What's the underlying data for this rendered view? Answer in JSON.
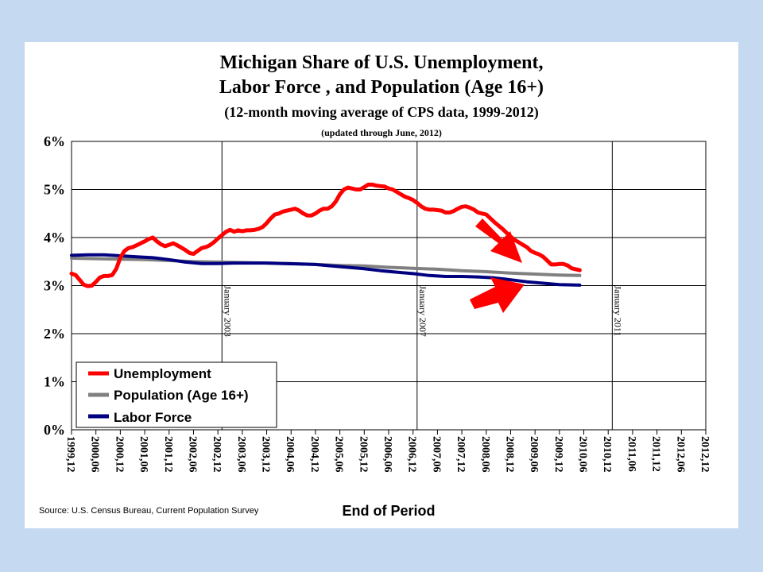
{
  "chart_data": {
    "type": "line",
    "title": "Michigan Share of U.S. Unemployment,",
    "title_line2": "Labor Force , and Population (Age 16+)",
    "subtitle": "(12-month moving average of CPS data, 1999-2012)",
    "subtitle2": "(updated through June, 2012)",
    "xlabel": "End of Period",
    "ylabel": "",
    "source": "Source: U.S. Census Bureau, Current Population Survey",
    "ylim": [
      0,
      6
    ],
    "y_ticks": [
      "0%",
      "1%",
      "2%",
      "3%",
      "4%",
      "5%",
      "6%"
    ],
    "x_ticks": [
      "1999,12",
      "2000,06",
      "2000,12",
      "2001,06",
      "2001,12",
      "2002,06",
      "2002,12",
      "2003,06",
      "2003,12",
      "2004,06",
      "2004,12",
      "2005,06",
      "2005,12",
      "2006,06",
      "2006,12",
      "2007,06",
      "2007,12",
      "2008,06",
      "2008,12",
      "2009,06",
      "2009,12",
      "2010,06",
      "2010,12",
      "2011,06",
      "2011,12",
      "2012,06",
      "2012,12"
    ],
    "grid": true,
    "legend_position": "bottom-left",
    "annotations": [
      {
        "label": "January 2003",
        "x": "2003,01"
      },
      {
        "label": "January 2007",
        "x": "2007,01"
      },
      {
        "label": "January 2011",
        "x": "2011,01"
      }
    ],
    "series": [
      {
        "name": "Unemployment",
        "color": "#ff0000",
        "points": [
          [
            0,
            3.25
          ],
          [
            1,
            3.22
          ],
          [
            2,
            3.12
          ],
          [
            3,
            3.02
          ],
          [
            4,
            2.99
          ],
          [
            5,
            3.0
          ],
          [
            6,
            3.08
          ],
          [
            7,
            3.17
          ],
          [
            8,
            3.2
          ],
          [
            9,
            3.2
          ],
          [
            10,
            3.22
          ],
          [
            11,
            3.35
          ],
          [
            12,
            3.58
          ],
          [
            13,
            3.72
          ],
          [
            14,
            3.78
          ],
          [
            15,
            3.8
          ],
          [
            16,
            3.84
          ],
          [
            17,
            3.88
          ],
          [
            18,
            3.92
          ],
          [
            19,
            3.97
          ],
          [
            20,
            4.0
          ],
          [
            21,
            3.92
          ],
          [
            22,
            3.86
          ],
          [
            23,
            3.82
          ],
          [
            24,
            3.85
          ],
          [
            25,
            3.88
          ],
          [
            26,
            3.84
          ],
          [
            27,
            3.79
          ],
          [
            28,
            3.74
          ],
          [
            29,
            3.68
          ],
          [
            30,
            3.66
          ],
          [
            31,
            3.72
          ],
          [
            32,
            3.78
          ],
          [
            33,
            3.8
          ],
          [
            34,
            3.84
          ],
          [
            35,
            3.9
          ],
          [
            36,
            3.98
          ],
          [
            37,
            4.05
          ],
          [
            38,
            4.12
          ],
          [
            39,
            4.16
          ],
          [
            40,
            4.12
          ],
          [
            41,
            4.15
          ],
          [
            42,
            4.13
          ],
          [
            43,
            4.15
          ],
          [
            44,
            4.15
          ],
          [
            45,
            4.16
          ],
          [
            46,
            4.18
          ],
          [
            47,
            4.22
          ],
          [
            48,
            4.3
          ],
          [
            49,
            4.4
          ],
          [
            50,
            4.48
          ],
          [
            51,
            4.5
          ],
          [
            52,
            4.54
          ],
          [
            53,
            4.56
          ],
          [
            54,
            4.58
          ],
          [
            55,
            4.6
          ],
          [
            56,
            4.56
          ],
          [
            57,
            4.5
          ],
          [
            58,
            4.46
          ],
          [
            59,
            4.46
          ],
          [
            60,
            4.5
          ],
          [
            61,
            4.56
          ],
          [
            62,
            4.6
          ],
          [
            63,
            4.6
          ],
          [
            64,
            4.65
          ],
          [
            65,
            4.75
          ],
          [
            66,
            4.9
          ],
          [
            67,
            5.0
          ],
          [
            68,
            5.04
          ],
          [
            69,
            5.02
          ],
          [
            70,
            5.0
          ],
          [
            71,
            5.0
          ],
          [
            72,
            5.05
          ],
          [
            73,
            5.1
          ],
          [
            74,
            5.1
          ],
          [
            75,
            5.08
          ],
          [
            76,
            5.07
          ],
          [
            77,
            5.06
          ],
          [
            78,
            5.02
          ],
          [
            79,
            5.0
          ],
          [
            80,
            4.95
          ],
          [
            81,
            4.9
          ],
          [
            82,
            4.85
          ],
          [
            83,
            4.82
          ],
          [
            84,
            4.78
          ],
          [
            85,
            4.72
          ],
          [
            86,
            4.65
          ],
          [
            87,
            4.6
          ],
          [
            88,
            4.58
          ],
          [
            89,
            4.58
          ],
          [
            90,
            4.57
          ],
          [
            91,
            4.56
          ],
          [
            92,
            4.52
          ],
          [
            93,
            4.52
          ],
          [
            94,
            4.55
          ],
          [
            95,
            4.6
          ],
          [
            96,
            4.64
          ],
          [
            97,
            4.65
          ],
          [
            98,
            4.62
          ],
          [
            99,
            4.58
          ],
          [
            100,
            4.52
          ],
          [
            101,
            4.5
          ],
          [
            102,
            4.48
          ],
          [
            103,
            4.4
          ],
          [
            104,
            4.32
          ],
          [
            105,
            4.25
          ],
          [
            106,
            4.18
          ],
          [
            107,
            4.1
          ],
          [
            108,
            4.02
          ],
          [
            109,
            3.95
          ],
          [
            110,
            3.9
          ],
          [
            111,
            3.85
          ],
          [
            112,
            3.8
          ],
          [
            113,
            3.72
          ],
          [
            114,
            3.68
          ],
          [
            115,
            3.65
          ],
          [
            116,
            3.6
          ],
          [
            117,
            3.52
          ],
          [
            118,
            3.44
          ],
          [
            119,
            3.44
          ],
          [
            120,
            3.45
          ],
          [
            121,
            3.45
          ],
          [
            122,
            3.42
          ],
          [
            123,
            3.36
          ],
          [
            124,
            3.34
          ],
          [
            125,
            3.32
          ]
        ]
      },
      {
        "name": "Population (Age 16+)",
        "color": "#808080",
        "points": [
          [
            0,
            3.57
          ],
          [
            6,
            3.56
          ],
          [
            12,
            3.55
          ],
          [
            18,
            3.54
          ],
          [
            24,
            3.52
          ],
          [
            30,
            3.5
          ],
          [
            36,
            3.49
          ],
          [
            42,
            3.48
          ],
          [
            48,
            3.47
          ],
          [
            54,
            3.46
          ],
          [
            60,
            3.44
          ],
          [
            66,
            3.42
          ],
          [
            72,
            3.41
          ],
          [
            78,
            3.38
          ],
          [
            84,
            3.36
          ],
          [
            90,
            3.34
          ],
          [
            96,
            3.31
          ],
          [
            102,
            3.29
          ],
          [
            108,
            3.26
          ],
          [
            114,
            3.24
          ],
          [
            120,
            3.22
          ],
          [
            125,
            3.21
          ]
        ]
      },
      {
        "name": "Labor Force",
        "color": "#000080",
        "points": [
          [
            0,
            3.63
          ],
          [
            4,
            3.64
          ],
          [
            8,
            3.64
          ],
          [
            12,
            3.62
          ],
          [
            16,
            3.6
          ],
          [
            20,
            3.58
          ],
          [
            24,
            3.54
          ],
          [
            28,
            3.49
          ],
          [
            32,
            3.46
          ],
          [
            36,
            3.46
          ],
          [
            40,
            3.47
          ],
          [
            44,
            3.47
          ],
          [
            48,
            3.47
          ],
          [
            52,
            3.46
          ],
          [
            56,
            3.45
          ],
          [
            60,
            3.44
          ],
          [
            64,
            3.41
          ],
          [
            68,
            3.38
          ],
          [
            72,
            3.35
          ],
          [
            76,
            3.31
          ],
          [
            80,
            3.28
          ],
          [
            84,
            3.25
          ],
          [
            88,
            3.21
          ],
          [
            92,
            3.19
          ],
          [
            96,
            3.19
          ],
          [
            100,
            3.18
          ],
          [
            104,
            3.16
          ],
          [
            108,
            3.12
          ],
          [
            112,
            3.08
          ],
          [
            116,
            3.05
          ],
          [
            120,
            3.02
          ],
          [
            125,
            3.01
          ]
        ]
      }
    ]
  },
  "arrows_color": "#ff0000"
}
